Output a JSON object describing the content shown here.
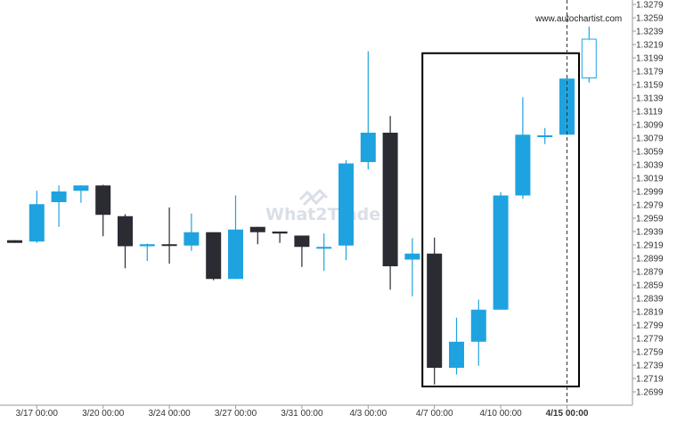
{
  "source_text": "www.autochartist.com",
  "watermark": "What2Trade",
  "colors": {
    "bull": "#1fa3e0",
    "bear": "#2a2b33",
    "pattern_box": "#000000",
    "axis": "#999999",
    "current_line": "#333333"
  },
  "chart_data": {
    "type": "candlestick",
    "ylim": [
      1.2699,
      1.3279
    ],
    "y_ticks": [
      "1.3279",
      "1.3259",
      "1.3239",
      "1.3219",
      "1.3199",
      "1.3179",
      "1.3159",
      "1.3139",
      "1.3119",
      "1.3099",
      "1.3079",
      "1.3059",
      "1.3039",
      "1.3019",
      "1.2999",
      "1.2979",
      "1.2959",
      "1.2939",
      "1.2919",
      "1.2899",
      "1.2879",
      "1.2859",
      "1.2839",
      "1.2819",
      "1.2799",
      "1.2779",
      "1.2759",
      "1.2739",
      "1.2719",
      "1.2699"
    ],
    "x_ticks": [
      {
        "label": "3/17 00:00",
        "index": 1,
        "bold": false
      },
      {
        "label": "3/20 00:00",
        "index": 4,
        "bold": false
      },
      {
        "label": "3/24 00:00",
        "index": 7,
        "bold": false
      },
      {
        "label": "3/27 00:00",
        "index": 10,
        "bold": false
      },
      {
        "label": "3/31 00:00",
        "index": 13,
        "bold": false
      },
      {
        "label": "4/3 00:00",
        "index": 16,
        "bold": false
      },
      {
        "label": "4/7 00:00",
        "index": 19,
        "bold": false
      },
      {
        "label": "4/10 00:00",
        "index": 22,
        "bold": false
      },
      {
        "label": "4/15 00:00",
        "index": 25,
        "bold": true
      }
    ],
    "candles": [
      {
        "o": 1.2926,
        "h": 1.2926,
        "l": 1.2922,
        "c": 1.2922
      },
      {
        "o": 1.2924,
        "h": 1.3,
        "l": 1.2922,
        "c": 1.298
      },
      {
        "o": 1.2983,
        "h": 1.3008,
        "l": 1.2946,
        "c": 1.2999
      },
      {
        "o": 1.3,
        "h": 1.3008,
        "l": 1.2982,
        "c": 1.3008
      },
      {
        "o": 1.3008,
        "h": 1.3009,
        "l": 1.2932,
        "c": 1.2964
      },
      {
        "o": 1.2962,
        "h": 1.2965,
        "l": 1.2884,
        "c": 1.2917
      },
      {
        "o": 1.2917,
        "h": 1.2921,
        "l": 1.2895,
        "c": 1.292
      },
      {
        "o": 1.292,
        "h": 1.2975,
        "l": 1.2891,
        "c": 1.2919
      },
      {
        "o": 1.2918,
        "h": 1.2966,
        "l": 1.291,
        "c": 1.2938
      },
      {
        "o": 1.2938,
        "h": 1.2938,
        "l": 1.2866,
        "c": 1.2868
      },
      {
        "o": 1.2868,
        "h": 1.2993,
        "l": 1.2868,
        "c": 1.2942
      },
      {
        "o": 1.2946,
        "h": 1.2946,
        "l": 1.292,
        "c": 1.2938
      },
      {
        "o": 1.2939,
        "h": 1.2939,
        "l": 1.2922,
        "c": 1.2936
      },
      {
        "o": 1.2933,
        "h": 1.2933,
        "l": 1.2886,
        "c": 1.2916
      },
      {
        "o": 1.2916,
        "h": 1.2936,
        "l": 1.288,
        "c": 1.2916
      },
      {
        "o": 1.2918,
        "h": 1.3046,
        "l": 1.2896,
        "c": 1.3041
      },
      {
        "o": 1.3043,
        "h": 1.3209,
        "l": 1.3032,
        "c": 1.3087
      },
      {
        "o": 1.3087,
        "h": 1.3112,
        "l": 1.2852,
        "c": 1.2887
      },
      {
        "o": 1.2897,
        "h": 1.2929,
        "l": 1.2842,
        "c": 1.2906
      },
      {
        "o": 1.2906,
        "h": 1.293,
        "l": 1.271,
        "c": 1.2735
      },
      {
        "o": 1.2735,
        "h": 1.281,
        "l": 1.2725,
        "c": 1.2774
      },
      {
        "o": 1.2774,
        "h": 1.2837,
        "l": 1.2738,
        "c": 1.2822
      },
      {
        "o": 1.2822,
        "h": 1.2998,
        "l": 1.2822,
        "c": 1.2993
      },
      {
        "o": 1.2993,
        "h": 1.314,
        "l": 1.2988,
        "c": 1.3084
      },
      {
        "o": 1.3083,
        "h": 1.3094,
        "l": 1.307,
        "c": 1.3083
      },
      {
        "o": 1.3084,
        "h": 1.3169,
        "l": 1.3084,
        "c": 1.3168
      },
      {
        "o": 1.3169,
        "h": 1.3246,
        "l": 1.3162,
        "c": 1.3227
      }
    ],
    "pattern_box": {
      "from_index": 19,
      "to_index": 25,
      "high": 1.3206,
      "low": 1.2707
    },
    "current_marker_index": 25
  }
}
